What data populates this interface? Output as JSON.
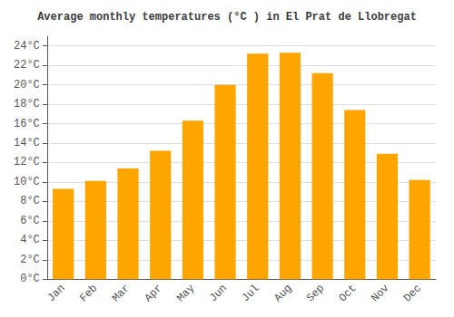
{
  "chart_data": {
    "type": "bar",
    "title": "Average monthly temperatures (°C ) in El Prat de Llobregat",
    "categories": [
      "Jan",
      "Feb",
      "Mar",
      "Apr",
      "May",
      "Jun",
      "Jul",
      "Aug",
      "Sep",
      "Oct",
      "Nov",
      "Dec"
    ],
    "values": [
      9.3,
      10.1,
      11.4,
      13.2,
      16.3,
      20.0,
      23.2,
      23.3,
      21.2,
      17.4,
      12.9,
      10.2
    ],
    "color": "#FFA500",
    "ylim": [
      0,
      25
    ],
    "yticks": [
      {
        "value": 0,
        "label": "0°C"
      },
      {
        "value": 2,
        "label": "2°C"
      },
      {
        "value": 4,
        "label": "4°C"
      },
      {
        "value": 6,
        "label": "6°C"
      },
      {
        "value": 8,
        "label": "8°C"
      },
      {
        "value": 10,
        "label": "10°C"
      },
      {
        "value": 12,
        "label": "12°C"
      },
      {
        "value": 14,
        "label": "14°C"
      },
      {
        "value": 16,
        "label": "16°C"
      },
      {
        "value": 18,
        "label": "18°C"
      },
      {
        "value": 20,
        "label": "20°C"
      },
      {
        "value": 22,
        "label": "22°C"
      },
      {
        "value": 24,
        "label": "24°C"
      }
    ],
    "grid": true
  }
}
